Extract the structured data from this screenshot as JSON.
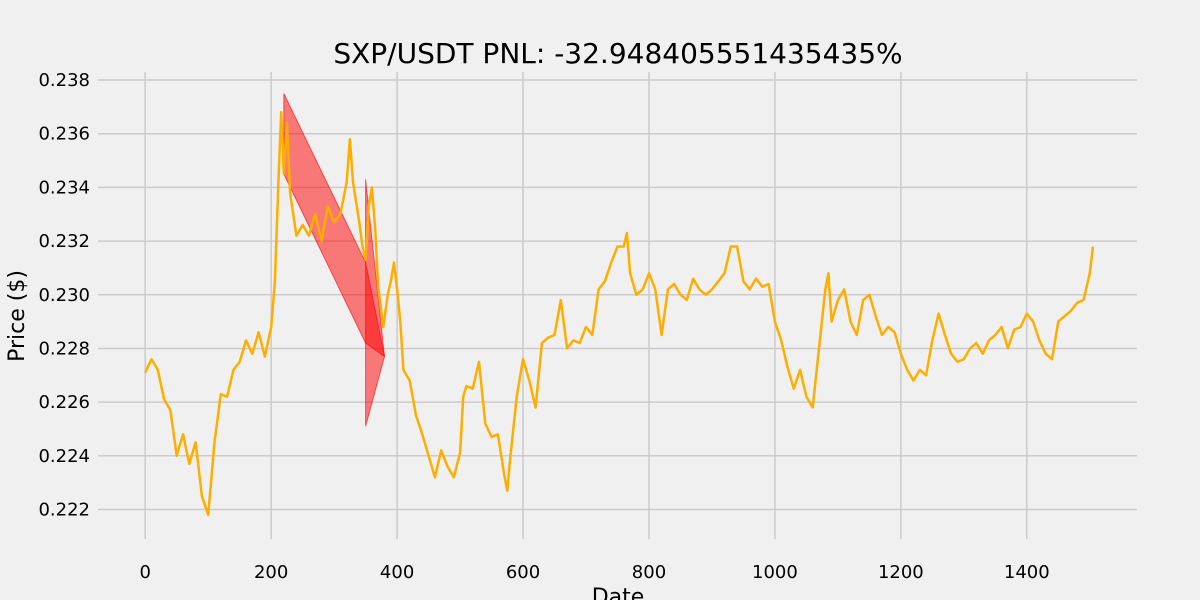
{
  "chart_data": {
    "type": "line",
    "title": "SXP/USDT  PNL: -32.948405551435435%",
    "xlabel": "Date",
    "ylabel": "Price ($)",
    "xlim": [
      -75,
      1575
    ],
    "ylim": [
      0.2209,
      0.2383
    ],
    "grid": true,
    "x_ticks": [
      0,
      200,
      400,
      600,
      800,
      1000,
      1200,
      1400
    ],
    "y_ticks": [
      0.222,
      0.224,
      0.226,
      0.228,
      0.23,
      0.232,
      0.234,
      0.236,
      0.238
    ],
    "y_tick_labels": [
      "0.222",
      "0.224",
      "0.226",
      "0.228",
      "0.230",
      "0.232",
      "0.234",
      "0.236",
      "0.238"
    ],
    "series": [
      {
        "color": "#ffae00",
        "points": [
          [
            0,
            0.2271
          ],
          [
            10,
            0.2276
          ],
          [
            20,
            0.2272
          ],
          [
            30,
            0.2261
          ],
          [
            40,
            0.2257
          ],
          [
            50,
            0.224
          ],
          [
            60,
            0.2248
          ],
          [
            70,
            0.2237
          ],
          [
            80,
            0.2245
          ],
          [
            90,
            0.2225
          ],
          [
            100,
            0.2218
          ],
          [
            110,
            0.2245
          ],
          [
            120,
            0.2263
          ],
          [
            130,
            0.2262
          ],
          [
            140,
            0.2272
          ],
          [
            150,
            0.2275
          ],
          [
            160,
            0.2283
          ],
          [
            170,
            0.2278
          ],
          [
            180,
            0.2286
          ],
          [
            190,
            0.2277
          ],
          [
            200,
            0.2288
          ],
          [
            206,
            0.2305
          ],
          [
            212,
            0.2345
          ],
          [
            216,
            0.2368
          ],
          [
            220,
            0.2345
          ],
          [
            225,
            0.2364
          ],
          [
            230,
            0.2338
          ],
          [
            240,
            0.2322
          ],
          [
            250,
            0.2326
          ],
          [
            260,
            0.2322
          ],
          [
            270,
            0.233
          ],
          [
            280,
            0.232
          ],
          [
            290,
            0.2333
          ],
          [
            300,
            0.2327
          ],
          [
            310,
            0.233
          ],
          [
            320,
            0.2342
          ],
          [
            325,
            0.2358
          ],
          [
            330,
            0.2342
          ],
          [
            340,
            0.2327
          ],
          [
            345,
            0.2318
          ],
          [
            350,
            0.2313
          ],
          [
            355,
            0.2333
          ],
          [
            360,
            0.234
          ],
          [
            365,
            0.2325
          ],
          [
            370,
            0.2303
          ],
          [
            378,
            0.2288
          ],
          [
            385,
            0.23
          ],
          [
            390,
            0.2305
          ],
          [
            395,
            0.2312
          ],
          [
            400,
            0.2302
          ],
          [
            405,
            0.229
          ],
          [
            410,
            0.2272
          ],
          [
            420,
            0.2268
          ],
          [
            430,
            0.2255
          ],
          [
            440,
            0.2248
          ],
          [
            450,
            0.224
          ],
          [
            460,
            0.2232
          ],
          [
            470,
            0.2242
          ],
          [
            480,
            0.2236
          ],
          [
            490,
            0.2232
          ],
          [
            500,
            0.2241
          ],
          [
            505,
            0.2262
          ],
          [
            510,
            0.2266
          ],
          [
            520,
            0.2265
          ],
          [
            530,
            0.2275
          ],
          [
            540,
            0.2252
          ],
          [
            550,
            0.2247
          ],
          [
            560,
            0.2248
          ],
          [
            570,
            0.2233
          ],
          [
            575,
            0.2227
          ],
          [
            580,
            0.224
          ],
          [
            590,
            0.2262
          ],
          [
            600,
            0.2276
          ],
          [
            610,
            0.2268
          ],
          [
            620,
            0.2258
          ],
          [
            630,
            0.2282
          ],
          [
            640,
            0.2284
          ],
          [
            650,
            0.2285
          ],
          [
            660,
            0.2298
          ],
          [
            670,
            0.228
          ],
          [
            680,
            0.2283
          ],
          [
            690,
            0.2282
          ],
          [
            700,
            0.2288
          ],
          [
            710,
            0.2285
          ],
          [
            720,
            0.2302
          ],
          [
            730,
            0.2305
          ],
          [
            740,
            0.2312
          ],
          [
            750,
            0.2318
          ],
          [
            760,
            0.2318
          ],
          [
            765,
            0.2323
          ],
          [
            770,
            0.2308
          ],
          [
            780,
            0.23
          ],
          [
            790,
            0.2302
          ],
          [
            800,
            0.2308
          ],
          [
            810,
            0.2302
          ],
          [
            820,
            0.2285
          ],
          [
            830,
            0.2302
          ],
          [
            840,
            0.2304
          ],
          [
            850,
            0.23
          ],
          [
            860,
            0.2298
          ],
          [
            870,
            0.2306
          ],
          [
            880,
            0.2302
          ],
          [
            890,
            0.23
          ],
          [
            900,
            0.2302
          ],
          [
            910,
            0.2305
          ],
          [
            920,
            0.2308
          ],
          [
            930,
            0.2318
          ],
          [
            940,
            0.2318
          ],
          [
            950,
            0.2305
          ],
          [
            960,
            0.2302
          ],
          [
            970,
            0.2306
          ],
          [
            980,
            0.2303
          ],
          [
            990,
            0.2304
          ],
          [
            1000,
            0.229
          ],
          [
            1010,
            0.2283
          ],
          [
            1020,
            0.2273
          ],
          [
            1030,
            0.2265
          ],
          [
            1040,
            0.2272
          ],
          [
            1050,
            0.2262
          ],
          [
            1060,
            0.2258
          ],
          [
            1070,
            0.228
          ],
          [
            1080,
            0.2302
          ],
          [
            1085,
            0.2308
          ],
          [
            1090,
            0.229
          ],
          [
            1100,
            0.2298
          ],
          [
            1110,
            0.2302
          ],
          [
            1120,
            0.229
          ],
          [
            1130,
            0.2285
          ],
          [
            1140,
            0.2298
          ],
          [
            1150,
            0.23
          ],
          [
            1160,
            0.2292
          ],
          [
            1170,
            0.2285
          ],
          [
            1180,
            0.2288
          ],
          [
            1190,
            0.2286
          ],
          [
            1200,
            0.2278
          ],
          [
            1210,
            0.2272
          ],
          [
            1220,
            0.2268
          ],
          [
            1230,
            0.2272
          ],
          [
            1240,
            0.227
          ],
          [
            1250,
            0.2283
          ],
          [
            1260,
            0.2293
          ],
          [
            1270,
            0.2285
          ],
          [
            1280,
            0.2278
          ],
          [
            1290,
            0.2275
          ],
          [
            1300,
            0.2276
          ],
          [
            1310,
            0.228
          ],
          [
            1320,
            0.2282
          ],
          [
            1330,
            0.2278
          ],
          [
            1340,
            0.2283
          ],
          [
            1350,
            0.2285
          ],
          [
            1360,
            0.2288
          ],
          [
            1370,
            0.228
          ],
          [
            1380,
            0.2287
          ],
          [
            1390,
            0.2288
          ],
          [
            1400,
            0.2293
          ],
          [
            1410,
            0.229
          ],
          [
            1420,
            0.2283
          ],
          [
            1430,
            0.2278
          ],
          [
            1440,
            0.2276
          ],
          [
            1450,
            0.229
          ],
          [
            1460,
            0.2292
          ],
          [
            1470,
            0.2294
          ],
          [
            1480,
            0.2297
          ],
          [
            1490,
            0.2298
          ],
          [
            1500,
            0.2308
          ],
          [
            1505,
            0.2318
          ]
        ]
      }
    ],
    "shaded_regions": [
      {
        "color": "#ff0000",
        "opacity": 0.5,
        "points": [
          [
            220,
            0.2375
          ],
          [
            350,
            0.2312
          ],
          [
            380,
            0.2277
          ],
          [
            350,
            0.2282
          ],
          [
            220,
            0.2345
          ]
        ]
      },
      {
        "color": "#ff0000",
        "opacity": 0.5,
        "points": [
          [
            350,
            0.2343
          ],
          [
            380,
            0.2277
          ],
          [
            350,
            0.2251
          ]
        ]
      }
    ]
  }
}
